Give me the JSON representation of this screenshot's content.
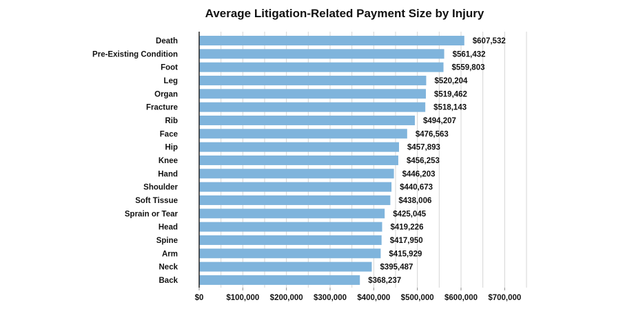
{
  "chart_data": {
    "type": "bar",
    "orientation": "horizontal",
    "title": "Average Litigation-Related Payment Size by Injury",
    "xlabel": "",
    "ylabel": "",
    "xlim": [
      0,
      750000
    ],
    "grid": true,
    "bar_color": "#7fb4dc",
    "categories": [
      "Death",
      "Pre-Existing Condition",
      "Foot",
      "Leg",
      "Organ",
      "Fracture",
      "Rib",
      "Face",
      "Hip",
      "Knee",
      "Hand",
      "Shoulder",
      "Soft Tissue",
      "Sprain or Tear",
      "Head",
      "Spine",
      "Arm",
      "Neck",
      "Back"
    ],
    "values": [
      607532,
      561432,
      559803,
      520204,
      519462,
      518143,
      494207,
      476563,
      457893,
      456253,
      446203,
      440673,
      438006,
      425045,
      419226,
      417950,
      415929,
      395487,
      368237
    ],
    "value_labels": [
      "$607,532",
      "$561,432",
      "$559,803",
      "$520,204",
      "$519,462",
      "$518,143",
      "$494,207",
      "$476,563",
      "$457,893",
      "$456,253",
      "$446,203",
      "$440,673",
      "$438,006",
      "$425,045",
      "$419,226",
      "$417,950",
      "$415,929",
      "$395,487",
      "$368,237"
    ],
    "x_ticks": [
      0,
      100000,
      200000,
      300000,
      400000,
      500000,
      600000,
      700000
    ],
    "x_tick_labels": [
      "$0",
      "$100,000",
      "$200,000",
      "$300,000",
      "$400,000",
      "$500,000",
      "$600,000",
      "$700,000"
    ]
  }
}
